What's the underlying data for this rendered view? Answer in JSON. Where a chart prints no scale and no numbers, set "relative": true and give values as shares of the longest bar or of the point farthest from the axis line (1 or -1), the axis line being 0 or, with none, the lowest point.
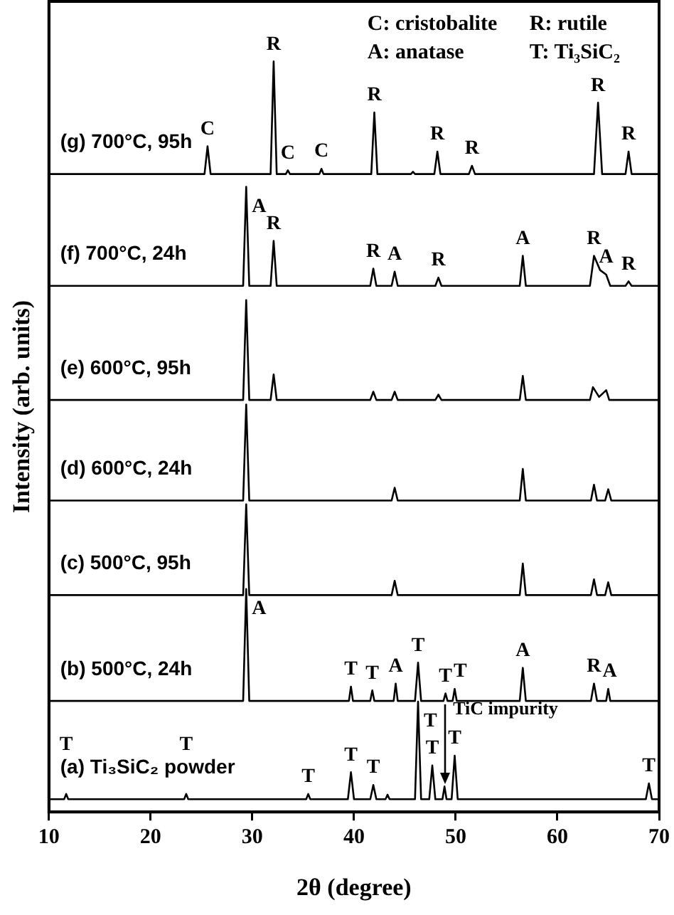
{
  "chart_data": {
    "type": "line",
    "relative": true,
    "xlabel": "2θ (degree)",
    "ylabel": "Intensity (arb. units)",
    "xlim": [
      10,
      70
    ],
    "xticks": [
      10,
      20,
      30,
      40,
      50,
      60,
      70
    ],
    "grid": false,
    "legend": false,
    "marker": "none",
    "line_style": "solid",
    "series": [
      {
        "name": "(g) 700°C, 95h",
        "color": "#000000",
        "x": [
          10,
          25.3,
          25.6,
          25.9,
          31.8,
          32.1,
          32.4,
          33.3,
          33.5,
          33.7,
          36.6,
          36.8,
          37.0,
          41.7,
          42.0,
          42.3,
          45.6,
          45.8,
          46.0,
          47.9,
          48.2,
          48.5,
          51.3,
          51.6,
          51.9,
          63.6,
          64.0,
          64.4,
          66.7,
          67.0,
          67.3,
          70
        ],
        "values": [
          0.85,
          0.85,
          0.887,
          0.85,
          0.85,
          1.0,
          0.85,
          0.85,
          0.855,
          0.85,
          0.85,
          0.857,
          0.85,
          0.85,
          0.932,
          0.85,
          0.85,
          0.853,
          0.85,
          0.85,
          0.88,
          0.85,
          0.85,
          0.861,
          0.85,
          0.85,
          0.945,
          0.85,
          0.85,
          0.88,
          0.85,
          0.85
        ]
      },
      {
        "name": "(f) 700°C, 24h",
        "color": "#000000",
        "x": [
          10,
          29.1,
          29.4,
          29.7,
          31.8,
          32.1,
          32.4,
          41.6,
          41.9,
          42.2,
          43.7,
          44.0,
          44.3,
          48.0,
          48.3,
          48.6,
          56.3,
          56.6,
          56.9,
          63.2,
          63.6,
          64.2,
          64.8,
          65.2,
          66.7,
          67.0,
          67.3,
          70
        ],
        "values": [
          0.701,
          0.701,
          0.833,
          0.701,
          0.701,
          0.761,
          0.701,
          0.701,
          0.724,
          0.701,
          0.701,
          0.72,
          0.701,
          0.701,
          0.712,
          0.701,
          0.701,
          0.741,
          0.701,
          0.701,
          0.741,
          0.722,
          0.716,
          0.701,
          0.701,
          0.707,
          0.701,
          0.701
        ]
      },
      {
        "name": "(e) 600°C, 95h",
        "color": "#000000",
        "x": [
          10,
          29.1,
          29.4,
          29.7,
          31.8,
          32.1,
          32.4,
          41.6,
          41.9,
          42.2,
          43.7,
          44.0,
          44.3,
          48.0,
          48.3,
          48.6,
          56.3,
          56.6,
          56.9,
          63.2,
          63.5,
          64.1,
          64.8,
          65.1,
          70
        ],
        "values": [
          0.549,
          0.549,
          0.682,
          0.549,
          0.549,
          0.583,
          0.549,
          0.549,
          0.56,
          0.549,
          0.549,
          0.56,
          0.549,
          0.549,
          0.556,
          0.549,
          0.549,
          0.581,
          0.549,
          0.549,
          0.566,
          0.553,
          0.562,
          0.549,
          0.549
        ]
      },
      {
        "name": "(d) 600°C, 24h",
        "color": "#000000",
        "x": [
          10,
          29.1,
          29.4,
          29.7,
          43.7,
          44.0,
          44.3,
          56.3,
          56.6,
          56.9,
          63.3,
          63.6,
          63.9,
          64.7,
          65.0,
          65.3,
          70
        ],
        "values": [
          0.415,
          0.415,
          0.543,
          0.415,
          0.415,
          0.432,
          0.415,
          0.415,
          0.457,
          0.415,
          0.415,
          0.436,
          0.415,
          0.415,
          0.43,
          0.415,
          0.415
        ]
      },
      {
        "name": "(c) 500°C, 95h",
        "color": "#000000",
        "x": [
          10,
          29.1,
          29.4,
          29.7,
          43.7,
          44.0,
          44.3,
          56.3,
          56.6,
          56.9,
          63.3,
          63.6,
          63.9,
          64.7,
          65.0,
          65.3,
          70
        ],
        "values": [
          0.289,
          0.289,
          0.41,
          0.289,
          0.289,
          0.308,
          0.289,
          0.289,
          0.331,
          0.289,
          0.289,
          0.31,
          0.289,
          0.289,
          0.306,
          0.289,
          0.289
        ]
      },
      {
        "name": "(b) 500°C, 24h",
        "color": "#000000",
        "x": [
          10,
          29.1,
          29.4,
          29.7,
          39.5,
          39.7,
          39.9,
          41.6,
          41.8,
          42.0,
          43.9,
          44.1,
          44.3,
          46.0,
          46.3,
          46.6,
          48.8,
          49.0,
          49.2,
          49.7,
          49.9,
          50.1,
          56.3,
          56.6,
          56.9,
          63.3,
          63.6,
          63.9,
          64.8,
          65.0,
          65.2,
          70
        ],
        "values": [
          0.148,
          0.148,
          0.297,
          0.148,
          0.148,
          0.167,
          0.148,
          0.148,
          0.162,
          0.148,
          0.148,
          0.171,
          0.148,
          0.148,
          0.199,
          0.148,
          0.148,
          0.158,
          0.148,
          0.148,
          0.164,
          0.148,
          0.148,
          0.192,
          0.148,
          0.148,
          0.171,
          0.148,
          0.148,
          0.164,
          0.148,
          0.148
        ]
      },
      {
        "name": "(a) Ti₃SiC₂ powder",
        "color": "#000000",
        "x": [
          10,
          11.5,
          11.7,
          11.9,
          23.3,
          23.5,
          23.7,
          35.3,
          35.5,
          35.7,
          39.4,
          39.7,
          40.0,
          41.6,
          41.9,
          42.2,
          43.1,
          43.3,
          43.5,
          46.0,
          46.3,
          46.6,
          47.4,
          47.7,
          48.0,
          48.7,
          48.9,
          49.1,
          49.6,
          49.9,
          50.2,
          68.7,
          69.0,
          69.3,
          70
        ],
        "values": [
          0.017,
          0.017,
          0.024,
          0.017,
          0.017,
          0.024,
          0.017,
          0.017,
          0.024,
          0.017,
          0.017,
          0.053,
          0.017,
          0.017,
          0.036,
          0.017,
          0.017,
          0.023,
          0.017,
          0.017,
          0.147,
          0.017,
          0.017,
          0.062,
          0.017,
          0.017,
          0.034,
          0.017,
          0.017,
          0.075,
          0.017,
          0.017,
          0.038,
          0.017,
          0.017
        ]
      }
    ],
    "annotations": [
      "C: cristobalite",
      "R: rutile",
      "A: anatase",
      "T: Ti₃SiC₂",
      {
        "text": "C",
        "x": 25.6,
        "y": 0.887
      },
      {
        "text": "R",
        "x": 32.1,
        "y": 1.0
      },
      {
        "text": "C",
        "x": 33.5,
        "y": 0.855
      },
      {
        "text": "C",
        "x": 36.8,
        "y": 0.857
      },
      {
        "text": "R",
        "x": 42.0,
        "y": 0.932
      },
      {
        "text": "R",
        "x": 48.2,
        "y": 0.88
      },
      {
        "text": "R",
        "x": 51.6,
        "y": 0.861
      },
      {
        "text": "R",
        "x": 64.0,
        "y": 0.945
      },
      {
        "text": "R",
        "x": 67.0,
        "y": 0.88
      },
      {
        "text": "A",
        "x": 29.4,
        "y": 0.833
      },
      {
        "text": "R",
        "x": 32.1,
        "y": 0.761
      },
      {
        "text": "R",
        "x": 41.9,
        "y": 0.724
      },
      {
        "text": "A",
        "x": 44.0,
        "y": 0.72
      },
      {
        "text": "R",
        "x": 48.3,
        "y": 0.712
      },
      {
        "text": "A",
        "x": 56.6,
        "y": 0.741
      },
      {
        "text": "R",
        "x": 63.6,
        "y": 0.741
      },
      {
        "text": "A",
        "x": 64.8,
        "y": 0.716
      },
      {
        "text": "R",
        "x": 67.0,
        "y": 0.707
      },
      {
        "text": "A",
        "x": 29.4,
        "y": 0.297
      },
      {
        "text": "T",
        "x": 39.7,
        "y": 0.167
      },
      {
        "text": "T",
        "x": 41.8,
        "y": 0.162
      },
      {
        "text": "A",
        "x": 44.1,
        "y": 0.171
      },
      {
        "text": "T",
        "x": 46.3,
        "y": 0.199
      },
      {
        "text": "T",
        "x": 49.0,
        "y": 0.158
      },
      {
        "text": "T",
        "x": 49.9,
        "y": 0.164
      },
      {
        "text": "A",
        "x": 56.6,
        "y": 0.192
      },
      {
        "text": "R",
        "x": 63.6,
        "y": 0.171
      },
      {
        "text": "A",
        "x": 65.0,
        "y": 0.164
      },
      {
        "text": "T",
        "x": 11.7,
        "y": 0.024
      },
      {
        "text": "T",
        "x": 23.5,
        "y": 0.024
      },
      {
        "text": "T",
        "x": 35.5,
        "y": 0.024
      },
      {
        "text": "T",
        "x": 39.7,
        "y": 0.053
      },
      {
        "text": "T",
        "x": 41.9,
        "y": 0.036
      },
      {
        "text": "T",
        "x": 46.3,
        "y": 0.147
      },
      {
        "text": "T",
        "x": 47.7,
        "y": 0.062
      },
      {
        "text": "T",
        "x": 49.9,
        "y": 0.075
      },
      {
        "text": "T",
        "x": 69.0,
        "y": 0.038
      },
      {
        "text": "TiC impurity",
        "x": 48.9,
        "y": 0.034
      }
    ]
  }
}
